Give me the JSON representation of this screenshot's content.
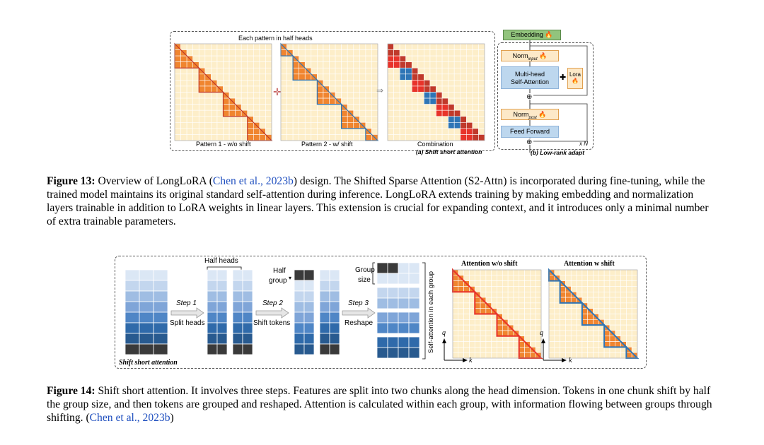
{
  "figure13": {
    "pattern_header": "Each pattern in half heads",
    "pattern1_label": "Pattern 1 - w/o shift",
    "pattern2_label": "Pattern 2 - w/ shift",
    "combination_label": "Combination",
    "subcaption_a": "(a) Shift short attention",
    "subcaption_b": "(b) Low-rank adapt",
    "embedding": "Embedding",
    "norm_input": "Norm",
    "norm_input_sub": "input",
    "mha_line1": "Multi-head",
    "mha_line2": "Self-Attention",
    "lora": "Lora",
    "norm_post": "Norm",
    "norm_post_sub": "post",
    "feed_forward": "Feed Forward",
    "repeat": "x N",
    "caption_label": "Figure 13:",
    "caption_pre": "Overview of LongLoRA (",
    "caption_cite": "Chen et al., 2023b",
    "caption_post": ") design. The Shifted Sparse Attention (S2-Attn) is incorporated during fine-tuning, while the trained model maintains its original standard self-attention during inference. LongLoRA extends training by making embedding and normalization layers trainable in addition to LoRA weights in linear layers. This extension is crucial for expanding context, and it introduces only a minimal number of extra trainable parameters."
  },
  "figure14": {
    "half_heads": "Half heads",
    "step1": "Step 1",
    "split_heads": "Split heads",
    "half_group_1": "Half",
    "half_group_2": "group",
    "step2": "Step 2",
    "shift_tokens": "Shift tokens",
    "group_size_1": "Group",
    "group_size_2": "size",
    "step3": "Step 3",
    "reshape": "Reshape",
    "self_attention_group": "Self-attention in each group",
    "attn_wo_shift": "Attention w/o shift",
    "attn_w_shift": "Attention w shift",
    "axis_q": "q",
    "axis_k": "k",
    "frame_label": "Shift short attention",
    "caption_label": "Figure 14:",
    "caption_pre": "Shift short attention. It involves three steps. Features are split into two chunks along the head dimension. Tokens in one chunk shift by half the group size, and then tokens are grouped and reshaped. Attention is calculated within each group, with information flowing between groups through shifting. (",
    "caption_cite": "Chen et al., 2023b",
    "caption_post": ")"
  },
  "colors": {
    "grid_fill": "#fdeec9",
    "orange": "#f0852f",
    "red": "#e8332a",
    "blue": "#2e75b6",
    "light_blue": "#c6dbef",
    "green_box": "#92c47d",
    "cite_blue": "#1f4fbf"
  }
}
